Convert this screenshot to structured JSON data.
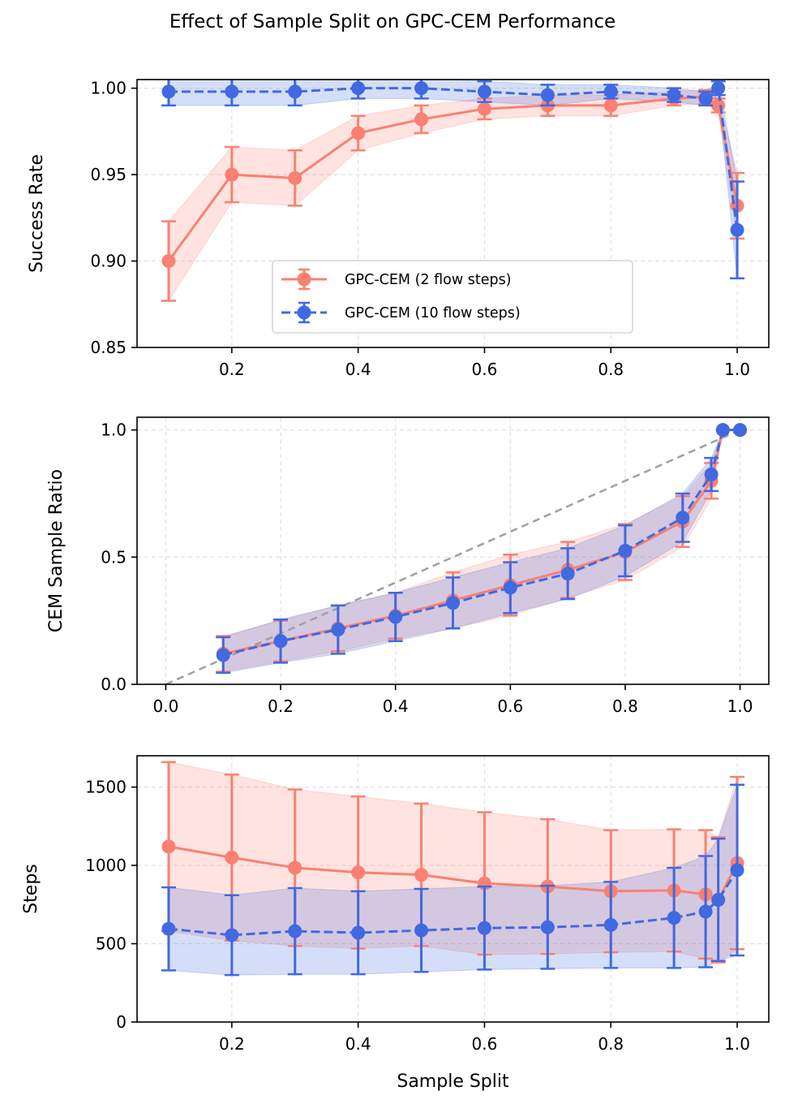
{
  "figure": {
    "title": "Effect of Sample Split on GPC-CEM Performance"
  },
  "colors": {
    "series_2": "#fa8072",
    "series_10": "#4169e1",
    "diagonal": "#a0a0a0",
    "grid": "#e0e0e0"
  },
  "chart_data": [
    {
      "type": "line",
      "panel": "top",
      "title": "",
      "xlabel": "",
      "ylabel": "Success Rate",
      "xlim": [
        0.05,
        1.05
      ],
      "ylim": [
        0.85,
        1.005
      ],
      "xticks": [
        0.2,
        0.4,
        0.6,
        0.8,
        1.0
      ],
      "xtick_labels": [
        "0.2",
        "0.4",
        "0.6",
        "0.8",
        "1.0"
      ],
      "yticks": [
        0.85,
        0.9,
        0.95,
        1.0
      ],
      "ytick_labels": [
        "0.85",
        "0.90",
        "0.95",
        "1.00"
      ],
      "grid": true,
      "legend": "lower-center",
      "x": [
        0.1,
        0.2,
        0.3,
        0.4,
        0.5,
        0.6,
        0.7,
        0.8,
        0.9,
        0.95,
        0.97,
        1.0
      ],
      "series": [
        {
          "name": "GPC-CEM (2 flow steps)",
          "style": "solid",
          "color": "#fa8072",
          "values": [
            0.9,
            0.95,
            0.948,
            0.974,
            0.982,
            0.988,
            0.99,
            0.99,
            0.994,
            0.995,
            0.99,
            0.932
          ],
          "errors": [
            0.023,
            0.016,
            0.016,
            0.01,
            0.008,
            0.006,
            0.006,
            0.006,
            0.004,
            0.004,
            0.004,
            0.019
          ]
        },
        {
          "name": "GPC-CEM (10 flow steps)",
          "style": "dashed",
          "color": "#4169e1",
          "values": [
            0.998,
            0.998,
            0.998,
            1.0,
            1.0,
            0.998,
            0.996,
            0.998,
            0.996,
            0.994,
            1.0,
            0.918
          ],
          "errors": [
            0.008,
            0.008,
            0.008,
            0.006,
            0.006,
            0.006,
            0.006,
            0.004,
            0.004,
            0.004,
            0.004,
            0.028
          ]
        }
      ]
    },
    {
      "type": "line",
      "panel": "middle",
      "title": "",
      "xlabel": "",
      "ylabel": "CEM Sample Ratio",
      "xlim": [
        -0.05,
        1.05
      ],
      "ylim": [
        0.0,
        1.05
      ],
      "xticks": [
        0.0,
        0.2,
        0.4,
        0.6,
        0.8,
        1.0
      ],
      "xtick_labels": [
        "0.0",
        "0.2",
        "0.4",
        "0.6",
        "0.8",
        "1.0"
      ],
      "yticks": [
        0.0,
        0.5,
        1.0
      ],
      "ytick_labels": [
        "0.0",
        "0.5",
        "1.0"
      ],
      "grid": true,
      "reference_line": {
        "from": [
          0.0,
          0.0
        ],
        "to": [
          1.0,
          1.0
        ],
        "style": "dashed"
      },
      "x": [
        0.1,
        0.2,
        0.3,
        0.4,
        0.5,
        0.6,
        0.7,
        0.8,
        0.9,
        0.95,
        0.97,
        1.0
      ],
      "series": [
        {
          "name": "GPC-CEM (2 flow steps)",
          "style": "solid",
          "color": "#fa8072",
          "values": [
            0.12,
            0.17,
            0.22,
            0.27,
            0.33,
            0.39,
            0.45,
            0.52,
            0.64,
            0.8,
            1.0,
            1.0
          ],
          "errors": [
            0.07,
            0.08,
            0.09,
            0.09,
            0.11,
            0.12,
            0.11,
            0.11,
            0.1,
            0.07,
            0.0,
            0.0
          ]
        },
        {
          "name": "GPC-CEM (10 flow steps)",
          "style": "dashed",
          "color": "#4169e1",
          "values": [
            0.115,
            0.17,
            0.215,
            0.265,
            0.32,
            0.38,
            0.435,
            0.525,
            0.655,
            0.825,
            1.0,
            1.0
          ],
          "errors": [
            0.07,
            0.085,
            0.095,
            0.095,
            0.1,
            0.1,
            0.1,
            0.1,
            0.095,
            0.065,
            0.0,
            0.0
          ]
        }
      ]
    },
    {
      "type": "line",
      "panel": "bottom",
      "title": "",
      "xlabel": "Sample Split",
      "ylabel": "Steps",
      "xlim": [
        0.05,
        1.05
      ],
      "ylim": [
        0,
        1700
      ],
      "xticks": [
        0.2,
        0.4,
        0.6,
        0.8,
        1.0
      ],
      "xtick_labels": [
        "0.2",
        "0.4",
        "0.6",
        "0.8",
        "1.0"
      ],
      "yticks": [
        0,
        500,
        1000,
        1500
      ],
      "ytick_labels": [
        "0",
        "500",
        "1000",
        "1500"
      ],
      "grid": true,
      "x": [
        0.1,
        0.2,
        0.3,
        0.4,
        0.5,
        0.6,
        0.7,
        0.8,
        0.9,
        0.95,
        0.97,
        1.0
      ],
      "series": [
        {
          "name": "GPC-CEM (2 flow steps)",
          "style": "solid",
          "color": "#fa8072",
          "values": [
            1120,
            1050,
            985,
            955,
            940,
            885,
            865,
            835,
            840,
            815,
            780,
            1015
          ],
          "errors": [
            540,
            530,
            500,
            485,
            455,
            455,
            430,
            390,
            390,
            410,
            400,
            550
          ]
        },
        {
          "name": "GPC-CEM (10 flow steps)",
          "style": "dashed",
          "color": "#4169e1",
          "values": [
            595,
            555,
            580,
            570,
            585,
            600,
            605,
            620,
            665,
            705,
            780,
            970
          ],
          "errors": [
            265,
            255,
            275,
            265,
            265,
            265,
            265,
            275,
            320,
            355,
            390,
            545
          ]
        }
      ]
    }
  ]
}
